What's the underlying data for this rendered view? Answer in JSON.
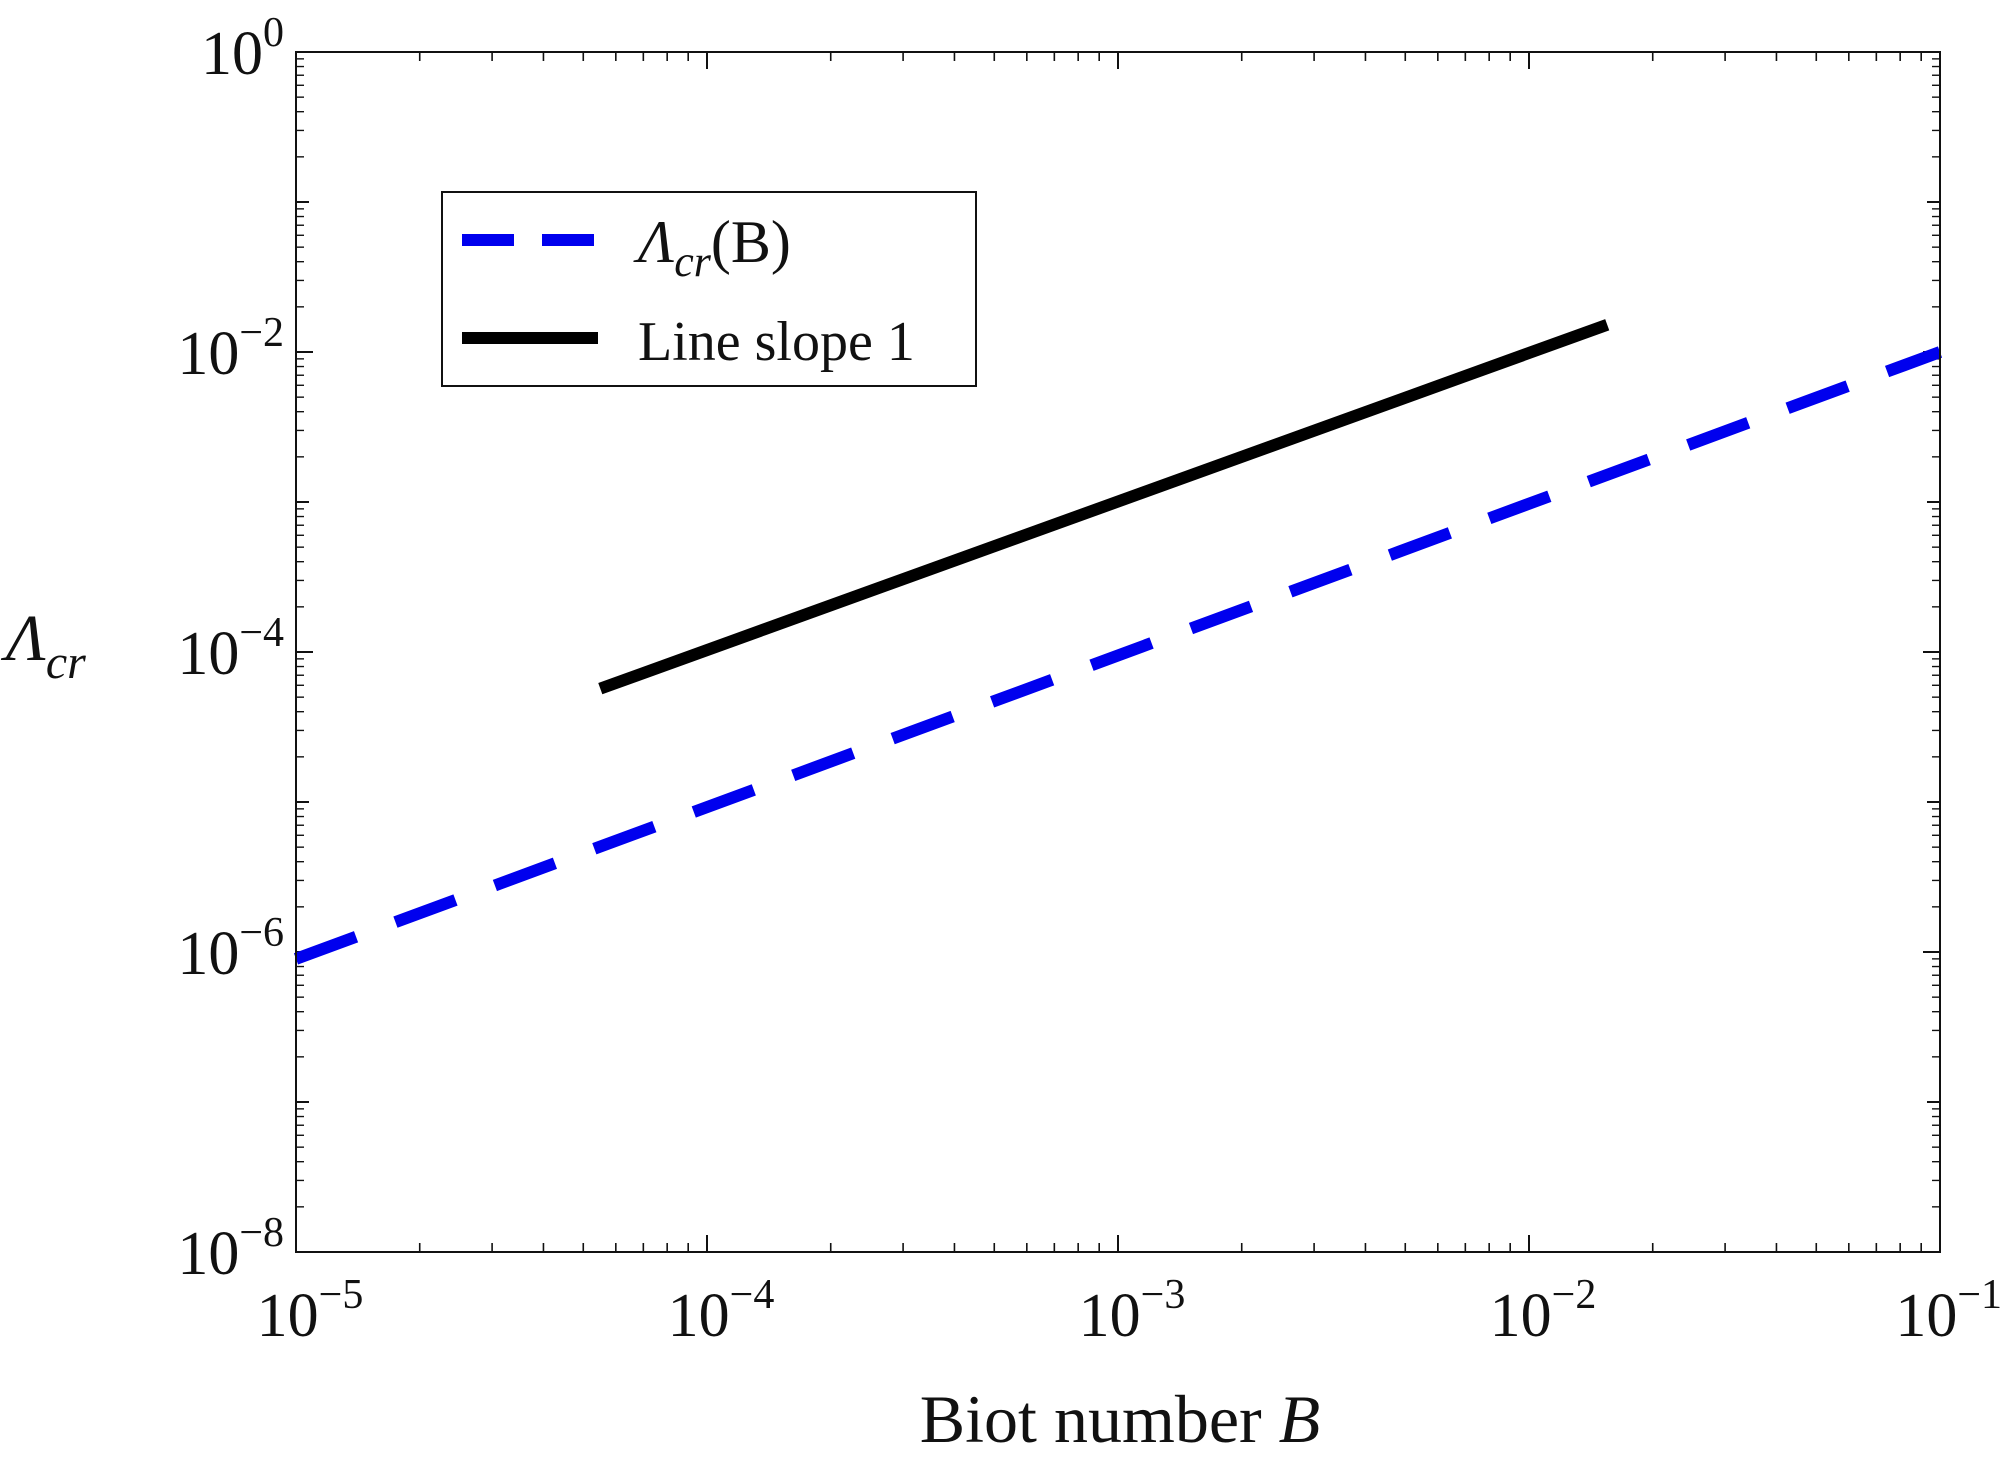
{
  "chart_data": {
    "type": "line",
    "xscale": "log",
    "yscale": "log",
    "xlim": [
      1e-05,
      0.1
    ],
    "ylim": [
      1e-08,
      1
    ],
    "x_ticks": [
      1e-05,
      0.0001,
      0.001,
      0.01,
      0.1
    ],
    "x_tick_labels": [
      {
        "base": "10",
        "exp": "−5"
      },
      {
        "base": "10",
        "exp": "−4"
      },
      {
        "base": "10",
        "exp": "−3"
      },
      {
        "base": "10",
        "exp": "−2"
      },
      {
        "base": "10",
        "exp": "−1"
      }
    ],
    "y_ticks": [
      1e-08,
      1e-06,
      0.0001,
      0.01,
      1
    ],
    "y_tick_labels": [
      {
        "base": "10",
        "exp": "−8"
      },
      {
        "base": "10",
        "exp": "−6"
      },
      {
        "base": "10",
        "exp": "−4"
      },
      {
        "base": "10",
        "exp": "−2"
      },
      {
        "base": "10",
        "exp": "0"
      }
    ],
    "xlabel": {
      "text": "Biot number ",
      "var": "B"
    },
    "ylabel": {
      "symbol": "Λ",
      "sub": "cr"
    },
    "legend_position": "top-left",
    "series": [
      {
        "name": "Λcr(B)",
        "legend": {
          "symbol": "Λ",
          "sub": "cr",
          "rest": "(B)"
        },
        "style": "dashed",
        "color": "#0000ee",
        "x": [
          1e-05,
          0.1
        ],
        "y": [
          9e-07,
          0.01
        ]
      },
      {
        "name": "Line slope 1",
        "legend": {
          "text": "Line slope 1"
        },
        "style": "solid",
        "color": "#000000",
        "x": [
          5.5e-05,
          0.0155
        ],
        "y": [
          5.7e-05,
          0.0152
        ]
      }
    ]
  }
}
